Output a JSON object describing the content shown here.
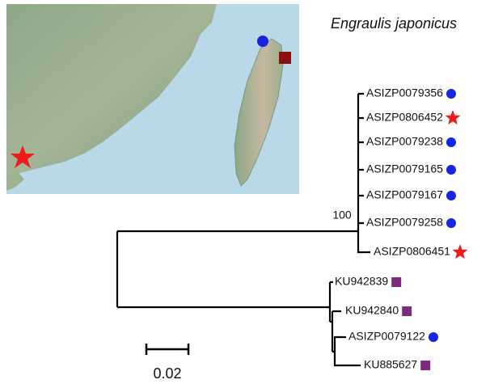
{
  "title": "Engraulis japonicus",
  "tree": {
    "bootstrap": "100",
    "leaves": [
      "ASIZP0079356",
      "ASIZP0806452",
      "ASIZP0079238",
      "ASIZP0079165",
      "ASIZP0079167",
      "ASIZP0079258",
      "ASIZP0806451",
      "KU942839",
      "KU942840",
      "ASIZP0079122",
      "KU885627"
    ]
  },
  "scale_bar": "0.02"
}
